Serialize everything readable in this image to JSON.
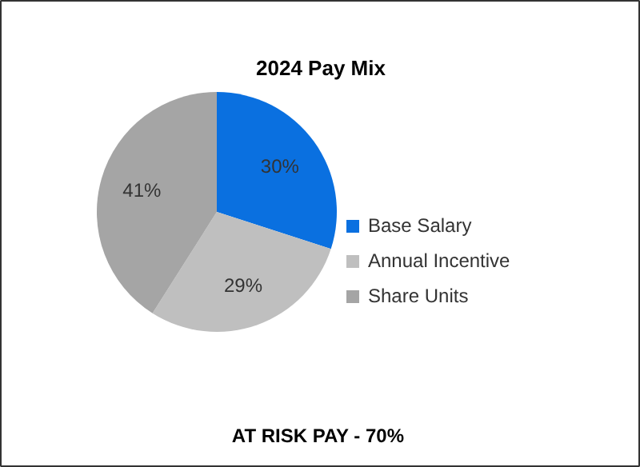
{
  "chart_data": {
    "type": "pie",
    "title": "2024 Pay Mix",
    "categories": [
      "Base Salary",
      "Annual Incentive",
      "Share Units"
    ],
    "values": [
      30,
      29,
      41
    ],
    "colors": [
      "#0a70e0",
      "#bfbfbf",
      "#a5a5a5"
    ],
    "value_labels": [
      "30%",
      "29%",
      "41%"
    ],
    "legend": "right",
    "annotations": [
      "AT RISK PAY -  70%"
    ]
  }
}
